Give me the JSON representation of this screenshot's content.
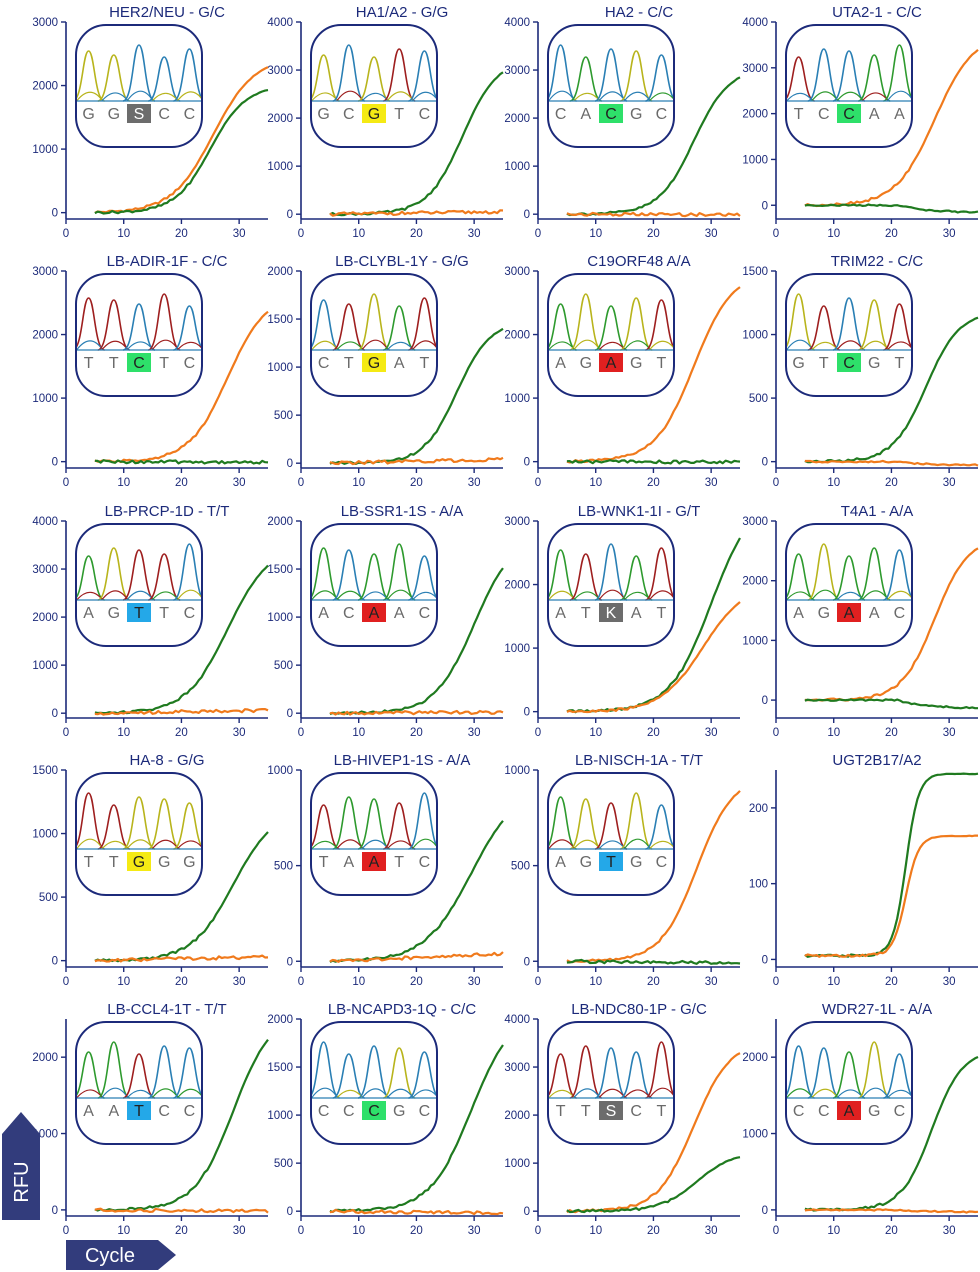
{
  "colors": {
    "axis": "#1c2a7a",
    "orange": "#f07a1c",
    "green": "#1f7a1f",
    "trace_a": "#2e9a2e",
    "trace_c": "#2a7fb4",
    "trace_g": "#b8b41c",
    "trace_t": "#9e1f1f",
    "hl_yellow": "#f5ea14",
    "hl_green": "#2ee06a",
    "hl_red": "#e02020",
    "hl_blue": "#24a8e8",
    "hl_gray": "#6c6c6c",
    "badge": "#323c7c"
  },
  "labels": {
    "y_badge": "RFU",
    "x_badge": "Cycle"
  },
  "chart_data": [
    {
      "title": "HER2/NEU - G/C",
      "type": "line",
      "xlim": [
        0,
        35
      ],
      "ylim": [
        -100,
        3000
      ],
      "yticks": [
        0,
        1000,
        2000,
        3000
      ],
      "xticks": [
        0,
        10,
        20,
        30
      ],
      "series": [
        {
          "name": "orange",
          "color": "orange",
          "shape": "sig",
          "params": [
            0,
            2450,
            25.5,
            0.28
          ]
        },
        {
          "name": "green",
          "color": "green",
          "shape": "sig",
          "params": [
            0,
            2000,
            25.0,
            0.33
          ]
        }
      ],
      "seq": [
        "G",
        "G",
        "S",
        "C",
        "C"
      ],
      "hl": "hl_gray",
      "hltext": "#ffffff"
    },
    {
      "title": "HA1/A2 - G/G",
      "type": "line",
      "xlim": [
        0,
        35
      ],
      "ylim": [
        -100,
        4000
      ],
      "yticks": [
        0,
        1000,
        2000,
        3000,
        4000
      ],
      "xticks": [
        0,
        10,
        20,
        30
      ],
      "series": [
        {
          "name": "green",
          "color": "green",
          "shape": "sig",
          "params": [
            0,
            3250,
            28.0,
            0.33
          ]
        },
        {
          "name": "orange",
          "color": "orange",
          "shape": "flat",
          "params": [
            0,
            50
          ]
        }
      ],
      "seq": [
        "G",
        "C",
        "G",
        "T",
        "C"
      ],
      "hl": "hl_yellow",
      "hltext": "#222222"
    },
    {
      "title": "HA2 - C/C",
      "type": "line",
      "xlim": [
        0,
        35
      ],
      "ylim": [
        -100,
        4000
      ],
      "yticks": [
        0,
        1000,
        2000,
        3000,
        4000
      ],
      "xticks": [
        0,
        10,
        20,
        30
      ],
      "series": [
        {
          "name": "green",
          "color": "green",
          "shape": "sig",
          "params": [
            0,
            3050,
            27.0,
            0.33
          ]
        },
        {
          "name": "orange",
          "color": "orange",
          "shape": "flat",
          "params": [
            0,
            -10
          ]
        }
      ],
      "seq": [
        "C",
        "A",
        "C",
        "G",
        "C"
      ],
      "hl": "hl_green",
      "hltext": "#222222"
    },
    {
      "title": "UTA2-1 - C/C",
      "type": "line",
      "xlim": [
        0,
        35
      ],
      "ylim": [
        -300,
        4000
      ],
      "yticks": [
        0,
        1000,
        2000,
        3000,
        4000
      ],
      "xticks": [
        0,
        10,
        20,
        30
      ],
      "series": [
        {
          "name": "orange",
          "color": "orange",
          "shape": "sig",
          "params": [
            0,
            3750,
            27.5,
            0.3
          ]
        },
        {
          "name": "green",
          "color": "green",
          "shape": "decay",
          "params": [
            0,
            -160
          ]
        }
      ],
      "seq": [
        "T",
        "C",
        "C",
        "A",
        "A"
      ],
      "hl": "hl_green",
      "hltext": "#222222"
    },
    {
      "title": "LB-ADIR-1F - C/C",
      "type": "line",
      "xlim": [
        0,
        35
      ],
      "ylim": [
        -100,
        3000
      ],
      "yticks": [
        0,
        1000,
        2000,
        3000
      ],
      "xticks": [
        0,
        10,
        20,
        30
      ],
      "series": [
        {
          "name": "orange",
          "color": "orange",
          "shape": "sig",
          "params": [
            0,
            2650,
            28.0,
            0.3
          ]
        },
        {
          "name": "green",
          "color": "green",
          "shape": "flat",
          "params": [
            0,
            -10
          ]
        }
      ],
      "seq": [
        "T",
        "T",
        "C",
        "T",
        "C"
      ],
      "hl": "hl_green",
      "hltext": "#222222"
    },
    {
      "title": "LB-CLYBL-1Y - G/G",
      "type": "line",
      "xlim": [
        0,
        35
      ],
      "ylim": [
        -50,
        2000
      ],
      "yticks": [
        0,
        500,
        1000,
        1500,
        2000
      ],
      "xticks": [
        0,
        10,
        20,
        30
      ],
      "series": [
        {
          "name": "green",
          "color": "green",
          "shape": "sig",
          "params": [
            0,
            1480,
            27.0,
            0.35
          ]
        },
        {
          "name": "orange",
          "color": "orange",
          "shape": "flat",
          "params": [
            0,
            40
          ]
        }
      ],
      "seq": [
        "C",
        "T",
        "G",
        "A",
        "T"
      ],
      "hl": "hl_yellow",
      "hltext": "#222222"
    },
    {
      "title": "C19ORF48 A/A",
      "type": "line",
      "xlim": [
        0,
        35
      ],
      "ylim": [
        -100,
        3000
      ],
      "yticks": [
        0,
        1000,
        2000,
        3000
      ],
      "xticks": [
        0,
        10,
        20,
        30
      ],
      "series": [
        {
          "name": "orange",
          "color": "orange",
          "shape": "sig",
          "params": [
            0,
            3000,
            27.0,
            0.3
          ]
        },
        {
          "name": "green",
          "color": "green",
          "shape": "flat",
          "params": [
            0,
            -5
          ]
        }
      ],
      "seq": [
        "A",
        "G",
        "A",
        "G",
        "T"
      ],
      "hl": "hl_red",
      "hltext": "#222222"
    },
    {
      "title": "TRIM22 - C/C",
      "type": "line",
      "xlim": [
        0,
        35
      ],
      "ylim": [
        -50,
        1500
      ],
      "yticks": [
        0,
        500,
        1000,
        1500
      ],
      "xticks": [
        0,
        10,
        20,
        30
      ],
      "series": [
        {
          "name": "green",
          "color": "green",
          "shape": "sig",
          "params": [
            0,
            1180,
            26.0,
            0.35
          ]
        },
        {
          "name": "orange",
          "color": "orange",
          "shape": "decay",
          "params": [
            0,
            -30
          ]
        }
      ],
      "seq": [
        "G",
        "T",
        "C",
        "G",
        "T"
      ],
      "hl": "hl_green",
      "hltext": "#222222"
    },
    {
      "title": "LB-PRCP-1D - T/T",
      "type": "line",
      "xlim": [
        0,
        35
      ],
      "ylim": [
        -100,
        4000
      ],
      "yticks": [
        0,
        1000,
        2000,
        3000,
        4000
      ],
      "xticks": [
        0,
        10,
        20,
        30
      ],
      "series": [
        {
          "name": "green",
          "color": "green",
          "shape": "sig",
          "params": [
            0,
            3500,
            28.0,
            0.28
          ]
        },
        {
          "name": "orange",
          "color": "orange",
          "shape": "flat",
          "params": [
            0,
            60
          ]
        }
      ],
      "seq": [
        "A",
        "G",
        "T",
        "T",
        "C"
      ],
      "hl": "hl_blue",
      "hltext": "#222222"
    },
    {
      "title": "LB-SSR1-1S - A/A",
      "type": "line",
      "xlim": [
        0,
        35
      ],
      "ylim": [
        -50,
        2000
      ],
      "yticks": [
        0,
        500,
        1000,
        1500,
        2000
      ],
      "xticks": [
        0,
        10,
        20,
        30
      ],
      "series": [
        {
          "name": "green",
          "color": "green",
          "shape": "sig",
          "params": [
            0,
            1850,
            30.0,
            0.3
          ]
        },
        {
          "name": "orange",
          "color": "orange",
          "shape": "flat",
          "params": [
            0,
            10
          ]
        }
      ],
      "seq": [
        "A",
        "C",
        "A",
        "A",
        "C"
      ],
      "hl": "hl_red",
      "hltext": "#222222"
    },
    {
      "title": "LB-WNK1-1I - G/T",
      "type": "line",
      "xlim": [
        0,
        35
      ],
      "ylim": [
        -100,
        3000
      ],
      "yticks": [
        0,
        1000,
        2000,
        3000
      ],
      "xticks": [
        0,
        10,
        20,
        30
      ],
      "series": [
        {
          "name": "green",
          "color": "green",
          "shape": "sig",
          "params": [
            0,
            3400,
            30.0,
            0.28
          ]
        },
        {
          "name": "orange",
          "color": "orange",
          "shape": "sig",
          "params": [
            0,
            2000,
            28.5,
            0.28
          ]
        }
      ],
      "seq": [
        "A",
        "T",
        "K",
        "A",
        "T"
      ],
      "hl": "hl_gray",
      "hltext": "#ffffff"
    },
    {
      "title": "T4A1 - A/A",
      "type": "line",
      "xlim": [
        0,
        35
      ],
      "ylim": [
        -300,
        3000
      ],
      "yticks": [
        0,
        1000,
        2000,
        3000
      ],
      "xticks": [
        0,
        10,
        20,
        30
      ],
      "series": [
        {
          "name": "orange",
          "color": "orange",
          "shape": "sig",
          "params": [
            0,
            2730,
            27.5,
            0.35
          ]
        },
        {
          "name": "green",
          "color": "green",
          "shape": "decay",
          "params": [
            0,
            -140
          ]
        }
      ],
      "seq": [
        "A",
        "G",
        "A",
        "A",
        "C"
      ],
      "hl": "hl_red",
      "hltext": "#222222"
    },
    {
      "title": "HA-8 - G/G",
      "type": "line",
      "xlim": [
        0,
        35
      ],
      "ylim": [
        -50,
        1500
      ],
      "yticks": [
        0,
        500,
        1000,
        1500
      ],
      "xticks": [
        0,
        10,
        20,
        30
      ],
      "series": [
        {
          "name": "green",
          "color": "green",
          "shape": "sig",
          "params": [
            0,
            1200,
            29.0,
            0.28
          ]
        },
        {
          "name": "orange",
          "color": "orange",
          "shape": "flat",
          "params": [
            0,
            30
          ]
        }
      ],
      "seq": [
        "T",
        "T",
        "G",
        "G",
        "G"
      ],
      "hl": "hl_yellow",
      "hltext": "#222222"
    },
    {
      "title": "LB-HIVEP1-1S - A/A",
      "type": "line",
      "xlim": [
        0,
        35
      ],
      "ylim": [
        -30,
        1000
      ],
      "yticks": [
        0,
        500,
        1000
      ],
      "xticks": [
        0,
        10,
        20,
        30
      ],
      "series": [
        {
          "name": "green",
          "color": "green",
          "shape": "sig",
          "params": [
            0,
            920,
            29.5,
            0.25
          ]
        },
        {
          "name": "orange",
          "color": "orange",
          "shape": "flat",
          "params": [
            0,
            40
          ]
        }
      ],
      "seq": [
        "T",
        "A",
        "A",
        "T",
        "C"
      ],
      "hl": "hl_red",
      "hltext": "#222222"
    },
    {
      "title": "LB-NISCH-1A - T/T",
      "type": "line",
      "xlim": [
        0,
        35
      ],
      "ylim": [
        -30,
        1000
      ],
      "yticks": [
        0,
        500,
        1000
      ],
      "xticks": [
        0,
        10,
        20,
        30
      ],
      "series": [
        {
          "name": "orange",
          "color": "orange",
          "shape": "sig",
          "params": [
            0,
            970,
            27.5,
            0.32
          ]
        },
        {
          "name": "green",
          "color": "green",
          "shape": "flat",
          "params": [
            0,
            -10
          ]
        }
      ],
      "seq": [
        "A",
        "G",
        "T",
        "G",
        "C"
      ],
      "hl": "hl_blue",
      "hltext": "#222222"
    },
    {
      "title": "UGT2B17/A2",
      "type": "line",
      "xlim": [
        0,
        35
      ],
      "ylim": [
        -10,
        250
      ],
      "yticks": [
        0,
        100,
        200
      ],
      "xticks": [
        0,
        10,
        20,
        30
      ],
      "series": [
        {
          "name": "green",
          "color": "green",
          "shape": "sig",
          "params": [
            5,
            240,
            22.5,
            0.9
          ]
        },
        {
          "name": "orange",
          "color": "orange",
          "shape": "sig",
          "params": [
            5,
            158,
            22.5,
            0.9
          ]
        }
      ],
      "seq": [],
      "hl": "",
      "hltext": ""
    },
    {
      "title": "LB-CCL4-1T - T/T",
      "type": "line",
      "xlim": [
        0,
        35
      ],
      "ylim": [
        -80,
        2500
      ],
      "yticks": [
        0,
        1000,
        2000
      ],
      "xticks": [
        0,
        10,
        20,
        30
      ],
      "series": [
        {
          "name": "green",
          "color": "green",
          "shape": "sig",
          "params": [
            0,
            2600,
            29.0,
            0.3
          ]
        },
        {
          "name": "orange",
          "color": "orange",
          "shape": "flat",
          "params": [
            0,
            -20
          ]
        }
      ],
      "seq": [
        "A",
        "A",
        "T",
        "C",
        "C"
      ],
      "hl": "hl_blue",
      "hltext": "#222222"
    },
    {
      "title": "LB-NCAPD3-1Q - C/C",
      "type": "line",
      "xlim": [
        0,
        35
      ],
      "ylim": [
        -50,
        2000
      ],
      "yticks": [
        0,
        500,
        1000,
        1500,
        2000
      ],
      "xticks": [
        0,
        10,
        20,
        30
      ],
      "series": [
        {
          "name": "green",
          "color": "green",
          "shape": "sig",
          "params": [
            0,
            2100,
            29.5,
            0.28
          ]
        },
        {
          "name": "orange",
          "color": "orange",
          "shape": "flat",
          "params": [
            0,
            -20
          ]
        }
      ],
      "seq": [
        "C",
        "C",
        "C",
        "G",
        "C"
      ],
      "hl": "hl_green",
      "hltext": "#222222"
    },
    {
      "title": "LB-NDC80-1P - G/C",
      "type": "line",
      "xlim": [
        0,
        35
      ],
      "ylim": [
        -100,
        4000
      ],
      "yticks": [
        0,
        1000,
        2000,
        3000,
        4000
      ],
      "xticks": [
        0,
        10,
        20,
        30
      ],
      "series": [
        {
          "name": "orange",
          "color": "orange",
          "shape": "sig",
          "params": [
            0,
            3550,
            27.0,
            0.32
          ]
        },
        {
          "name": "green",
          "color": "green",
          "shape": "sig",
          "params": [
            0,
            1230,
            27.5,
            0.32
          ]
        }
      ],
      "seq": [
        "T",
        "T",
        "S",
        "C",
        "T"
      ],
      "hl": "hl_gray",
      "hltext": "#ffffff"
    },
    {
      "title": "WDR27-1L - A/A",
      "type": "line",
      "xlim": [
        0,
        35
      ],
      "ylim": [
        -80,
        2500
      ],
      "yticks": [
        0,
        1000,
        2000
      ],
      "xticks": [
        0,
        10,
        20,
        30
      ],
      "series": [
        {
          "name": "green",
          "color": "green",
          "shape": "sig",
          "params": [
            0,
            2100,
            27.0,
            0.38
          ]
        },
        {
          "name": "orange",
          "color": "orange",
          "shape": "decay",
          "params": [
            0,
            -30
          ]
        }
      ],
      "seq": [
        "C",
        "C",
        "A",
        "G",
        "C"
      ],
      "hl": "hl_red",
      "hltext": "#222222"
    }
  ]
}
